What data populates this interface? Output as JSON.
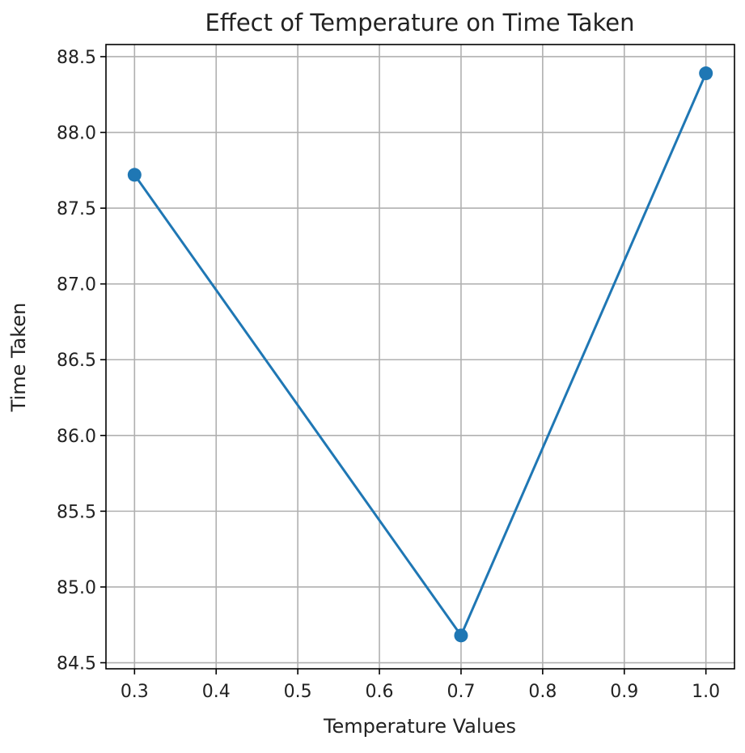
{
  "chart_data": {
    "type": "line",
    "title": "Effect of Temperature on Time Taken",
    "xlabel": "Temperature Values",
    "ylabel": "Time Taken",
    "xlim": [
      0.265,
      1.035
    ],
    "ylim": [
      84.46,
      88.58
    ],
    "grid": true,
    "x_ticks": [
      0.3,
      0.4,
      0.5,
      0.6,
      0.7,
      0.8,
      0.9,
      1.0
    ],
    "x_tick_labels": [
      "0.3",
      "0.4",
      "0.5",
      "0.6",
      "0.7",
      "0.8",
      "0.9",
      "1.0"
    ],
    "y_ticks": [
      84.5,
      85.0,
      85.5,
      86.0,
      86.5,
      87.0,
      87.5,
      88.0,
      88.5
    ],
    "y_tick_labels": [
      "84.5",
      "85.0",
      "85.5",
      "86.0",
      "86.5",
      "87.0",
      "87.5",
      "88.0",
      "88.5"
    ],
    "series": [
      {
        "x": [
          0.3,
          0.7,
          1.0
        ],
        "y": [
          87.72,
          84.68,
          88.39
        ],
        "color": "#1f77b4",
        "marker": "circle"
      }
    ]
  }
}
